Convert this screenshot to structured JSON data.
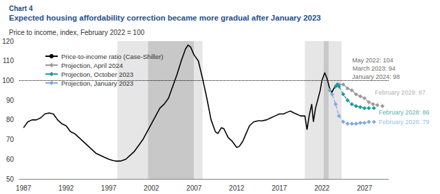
{
  "chart_data": {
    "type": "line",
    "chart_number": "Chart 4",
    "title": "Expected housing affordability correction became more gradual after January 2023",
    "subtitle": "Price to income, index, February 2022 = 100",
    "xlim": [
      1986.5,
      2029.8
    ],
    "xticks": [
      1987,
      1992,
      1997,
      2002,
      2007,
      2012,
      2017,
      2022,
      2027
    ],
    "ylim": [
      50,
      120
    ],
    "yticks": [
      50,
      60,
      70,
      80,
      90,
      100,
      110,
      120
    ],
    "grid": false,
    "legend": "upper left",
    "series": [
      {
        "name": "Price-to-income ratio (Case-Shiller)",
        "color": "#000000",
        "line_style": "solid",
        "marker": "none",
        "x": [
          1987.0,
          1987.5,
          1988.0,
          1988.5,
          1989.0,
          1989.5,
          1990.0,
          1990.5,
          1991.0,
          1991.5,
          1992.0,
          1992.5,
          1993.0,
          1993.5,
          1994.0,
          1994.5,
          1995.0,
          1995.5,
          1996.0,
          1996.5,
          1997.0,
          1997.5,
          1998.0,
          1998.5,
          1999.0,
          1999.5,
          2000.0,
          2000.5,
          2001.0,
          2001.5,
          2002.0,
          2002.5,
          2003.0,
          2003.5,
          2004.0,
          2004.5,
          2005.0,
          2005.5,
          2006.0,
          2006.3,
          2006.6,
          2007.0,
          2007.5,
          2008.0,
          2008.5,
          2009.0,
          2009.5,
          2009.8,
          2010.2,
          2010.5,
          2011.0,
          2011.5,
          2012.0,
          2012.3,
          2012.7,
          2013.0,
          2013.5,
          2014.0,
          2014.5,
          2015.0,
          2015.5,
          2016.0,
          2016.5,
          2017.0,
          2017.5,
          2018.0,
          2018.3,
          2018.7,
          2019.0,
          2019.5,
          2020.0,
          2020.25,
          2020.5,
          2020.8,
          2021.0,
          2021.25,
          2021.5,
          2021.8,
          2022.0,
          2022.33,
          2022.6,
          2022.9,
          2023.17,
          2023.4,
          2023.7,
          2024.0
        ],
        "values": [
          76,
          79,
          80,
          80,
          81,
          83,
          83.5,
          83,
          80,
          78,
          77,
          74,
          73,
          71,
          69,
          67,
          65,
          63,
          62,
          61,
          60,
          59.3,
          59,
          59.2,
          60,
          62,
          64,
          67,
          70,
          74,
          78,
          82,
          86,
          88,
          91,
          97,
          103,
          110,
          116,
          118,
          117,
          113,
          110,
          101,
          91,
          80,
          74,
          73,
          76,
          75.5,
          71,
          69,
          66,
          66.5,
          69,
          72,
          77,
          79,
          79.5,
          79.5,
          80,
          81,
          82,
          83,
          83,
          84,
          84.5,
          83.5,
          83,
          82,
          82,
          75,
          82,
          88,
          79,
          86,
          90,
          95,
          100,
          104,
          101,
          96,
          94,
          96,
          97,
          98
        ]
      },
      {
        "name": "Projection, April 2024",
        "color": "#999999",
        "line_style": "dashed",
        "marker": "diamond",
        "x": [
          2024.0,
          2024.5,
          2025.0,
          2025.5,
          2026.0,
          2026.5,
          2027.0,
          2027.5,
          2028.0,
          2028.5,
          2029.1
        ],
        "values": [
          98,
          98,
          96,
          95,
          93,
          92,
          91,
          89,
          88,
          87.5,
          87
        ]
      },
      {
        "name": "Projection, October 2023",
        "color": "#1a9a9c",
        "line_style": "dashed",
        "marker": "diamond",
        "x": [
          2023.6,
          2023.8,
          2024.0,
          2024.5,
          2025.0,
          2025.5,
          2026.0,
          2026.5,
          2027.0,
          2027.5,
          2028.1
        ],
        "values": [
          97,
          98,
          97,
          93,
          90,
          88,
          87,
          86.5,
          86,
          86,
          86
        ]
      },
      {
        "name": "Projection, January 2023",
        "color": "#7fa9dc",
        "line_style": "dashed",
        "marker": "diamond",
        "x": [
          2022.9,
          2023.2,
          2023.6,
          2024.0,
          2024.5,
          2025.0,
          2025.5,
          2026.0,
          2026.5,
          2027.0,
          2027.5,
          2028.1
        ],
        "values": [
          95,
          93,
          88,
          82,
          79,
          78,
          78,
          78,
          78.5,
          78.5,
          79,
          79
        ]
      }
    ],
    "shaded_periods": [
      {
        "from": 1998.0,
        "to": 2001.6,
        "color": "#e6e6e6"
      },
      {
        "from": 2001.6,
        "to": 2007.0,
        "color": "#c8c8c8"
      },
      {
        "from": 2007.0,
        "to": 2008.0,
        "color": "#e6e6e6"
      },
      {
        "from": 2020.0,
        "to": 2022.2,
        "color": "#e6e6e6"
      },
      {
        "from": 2022.2,
        "to": 2022.8,
        "color": "#c8c8c8"
      },
      {
        "from": 2022.8,
        "to": 2024.3,
        "color": "#e6e6e6"
      }
    ],
    "reference_line": {
      "y": 100,
      "line_style": "dotted",
      "color": "#000000"
    },
    "annotations": [
      {
        "text": "May 2022: 104",
        "x": 2022.33,
        "y": 104,
        "color": "#404040"
      },
      {
        "text": "March 2023: 94",
        "x": 2023.17,
        "y": 94,
        "color": "#404040"
      },
      {
        "text": "January 2024: 98",
        "x": 2024.0,
        "y": 98,
        "color": "#404040"
      },
      {
        "text": "February 2029: 87",
        "x": 2029.1,
        "y": 87,
        "color": "#999999"
      },
      {
        "text": "February 2028: 86",
        "x": 2028.1,
        "y": 86,
        "color": "#1a9a9c"
      },
      {
        "text": "February 2028: 79",
        "x": 2028.1,
        "y": 79,
        "color": "#7fa9dc"
      }
    ]
  }
}
